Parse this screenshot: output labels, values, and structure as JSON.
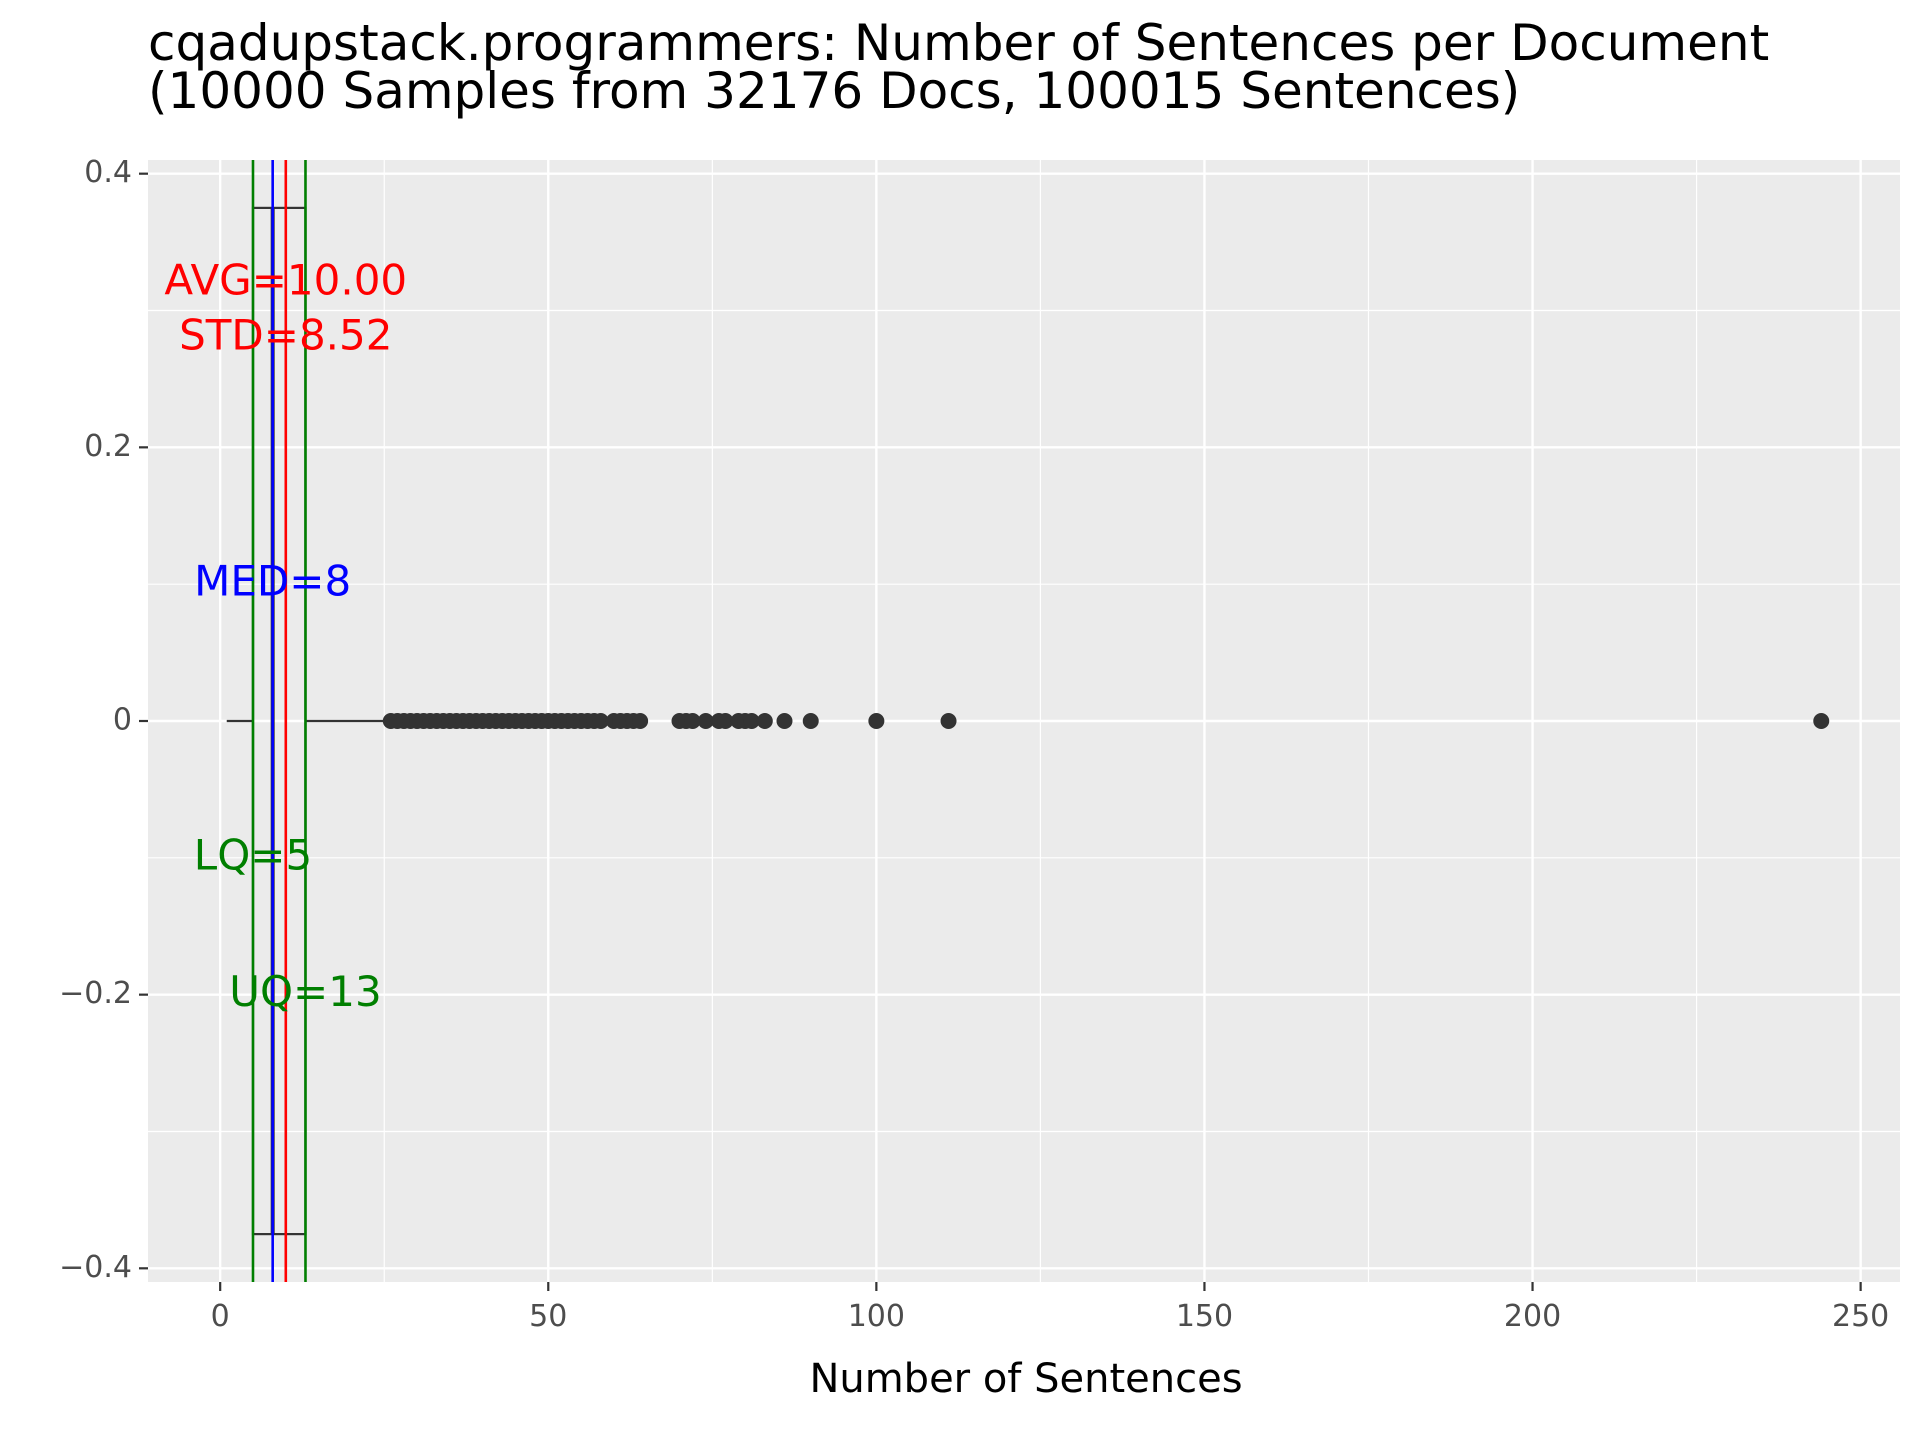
{
  "chart_data": {
    "type": "boxplot",
    "title_line1": "cqadupstack.programmers: Number of Sentences per Document",
    "title_line2": "(10000 Samples from 32176 Docs, 100015 Sentences)",
    "xlabel": "Number of Sentences",
    "ylabel": "",
    "xlim": [
      -11,
      256
    ],
    "ylim": [
      -0.41,
      0.41
    ],
    "x_ticks": [
      0,
      50,
      100,
      150,
      200,
      250
    ],
    "x_tick_labels": [
      "0",
      "50",
      "100",
      "150",
      "200",
      "250"
    ],
    "y_ticks": [
      0.4,
      0.2,
      0,
      -0.2,
      -0.4
    ],
    "y_tick_labels": [
      "0.4",
      "0.2",
      "0",
      "−0.2",
      "−0.4"
    ],
    "grid": true,
    "box": {
      "q1": 5,
      "median": 8,
      "q3": 13,
      "whisker_low": 1,
      "whisker_high": 25,
      "y_half_width": 0.375
    },
    "outliers": [
      26,
      27,
      28,
      29,
      30,
      31,
      32,
      33,
      34,
      35,
      36,
      37,
      38,
      39,
      40,
      41,
      42,
      43,
      44,
      45,
      46,
      47,
      48,
      49,
      50,
      51,
      52,
      53,
      54,
      55,
      56,
      57,
      58,
      60,
      61,
      62,
      63,
      64,
      70,
      71,
      72,
      74,
      76,
      77,
      79,
      80,
      81,
      83,
      86,
      90,
      100,
      111,
      244
    ],
    "reference_lines": [
      {
        "name": "lq-line",
        "x": 5,
        "color": "#007f00"
      },
      {
        "name": "median-line",
        "x": 8,
        "color": "#0000ff"
      },
      {
        "name": "mean-line",
        "x": 10,
        "color": "#ff0000"
      },
      {
        "name": "uq-line",
        "x": 13,
        "color": "#007f00"
      }
    ],
    "annotations": [
      {
        "name": "avg-annotation",
        "text": "AVG=10.00",
        "x": 10,
        "y": 0.32,
        "color": "#ff0000"
      },
      {
        "name": "std-annotation",
        "text": "STD=8.52",
        "x": 10,
        "y": 0.28,
        "color": "#ff0000"
      },
      {
        "name": "median-annotation",
        "text": "MED=8",
        "x": 8,
        "y": 0.1,
        "color": "#0000ff"
      },
      {
        "name": "lq-annotation",
        "text": "LQ=5",
        "x": 5,
        "y": -0.1,
        "color": "#007f00"
      },
      {
        "name": "uq-annotation",
        "text": "UQ=13",
        "x": 13,
        "y": -0.2,
        "color": "#007f00"
      }
    ],
    "colors": {
      "panel_background": "#ebebeb",
      "grid_major": "#ffffff",
      "box_and_points": "#333333"
    }
  }
}
